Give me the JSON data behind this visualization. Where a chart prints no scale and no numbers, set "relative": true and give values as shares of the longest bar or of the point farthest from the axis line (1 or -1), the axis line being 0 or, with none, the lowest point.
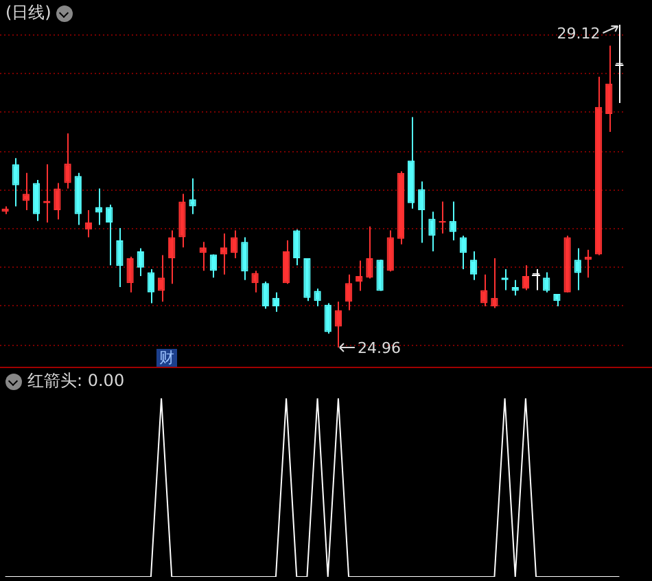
{
  "chart_data": [
    {
      "type": "candlestick",
      "title": "(日线)",
      "categories": [
        null,
        null,
        null,
        null,
        null,
        null,
        null,
        null,
        null,
        null,
        null,
        null,
        null,
        null,
        null,
        null,
        null,
        null,
        null,
        null,
        null,
        null,
        null,
        null,
        null,
        null,
        null,
        null,
        null,
        null,
        null,
        null,
        null,
        null,
        null,
        null,
        null,
        null,
        null,
        null,
        null,
        null,
        null,
        null,
        null,
        null,
        null,
        null,
        null,
        null,
        null,
        null,
        null,
        null,
        null,
        null,
        null,
        null,
        null,
        null
      ],
      "ohlc": [
        [
          26.71,
          26.78,
          26.68,
          26.75
        ],
        [
          27.32,
          27.4,
          26.78,
          27.05
        ],
        [
          26.85,
          27.21,
          26.73,
          26.94
        ],
        [
          27.08,
          27.12,
          26.59,
          26.68
        ],
        [
          26.82,
          27.32,
          26.57,
          26.85
        ],
        [
          26.73,
          27.08,
          26.61,
          27.01
        ],
        [
          27.08,
          27.72,
          27.01,
          27.33
        ],
        [
          27.17,
          27.21,
          26.54,
          26.68
        ],
        [
          26.48,
          26.73,
          26.38,
          26.57
        ],
        [
          26.77,
          27.01,
          26.54,
          26.7
        ],
        [
          26.77,
          26.8,
          26.02,
          26.57
        ],
        [
          26.34,
          26.5,
          25.74,
          26.01
        ],
        [
          25.79,
          26.13,
          25.67,
          26.11
        ],
        [
          26.2,
          26.24,
          25.88,
          25.99
        ],
        [
          25.93,
          25.97,
          25.53,
          25.67
        ],
        [
          25.69,
          26.15,
          25.55,
          25.86
        ],
        [
          26.11,
          26.47,
          25.78,
          26.38
        ],
        [
          26.38,
          26.94,
          26.25,
          26.84
        ],
        [
          26.87,
          27.14,
          26.68,
          26.78
        ],
        [
          26.18,
          26.32,
          25.95,
          26.25
        ],
        [
          26.16,
          26.16,
          25.86,
          25.95
        ],
        [
          26.16,
          26.43,
          25.9,
          26.25
        ],
        [
          26.18,
          26.47,
          26.11,
          26.38
        ],
        [
          26.32,
          26.38,
          25.83,
          25.94
        ],
        [
          25.79,
          25.95,
          25.67,
          25.92
        ],
        [
          25.79,
          25.81,
          25.46,
          25.49
        ],
        [
          25.6,
          25.67,
          25.42,
          25.49
        ],
        [
          25.79,
          26.34,
          25.78,
          26.2
        ],
        [
          26.47,
          26.48,
          26.02,
          26.11
        ],
        [
          26.11,
          26.11,
          25.56,
          25.6
        ],
        [
          25.69,
          25.72,
          25.49,
          25.56
        ],
        [
          25.51,
          25.53,
          25.14,
          25.16
        ],
        [
          25.23,
          25.55,
          24.96,
          25.44
        ],
        [
          25.55,
          25.9,
          25.44,
          25.79
        ],
        [
          25.81,
          26.08,
          25.69,
          25.88
        ],
        [
          25.86,
          26.52,
          25.85,
          26.11
        ],
        [
          26.09,
          26.09,
          25.69,
          25.69
        ],
        [
          25.95,
          26.47,
          25.94,
          26.38
        ],
        [
          26.36,
          27.23,
          26.29,
          27.21
        ],
        [
          27.37,
          27.93,
          26.75,
          26.82
        ],
        [
          27.0,
          27.1,
          26.31,
          26.73
        ],
        [
          26.62,
          26.71,
          26.2,
          26.4
        ],
        [
          26.57,
          26.84,
          26.43,
          26.59
        ],
        [
          26.59,
          26.84,
          26.34,
          26.45
        ],
        [
          26.38,
          26.4,
          25.97,
          26.18
        ],
        [
          26.09,
          26.2,
          25.83,
          25.9
        ],
        [
          25.53,
          25.9,
          25.49,
          25.7
        ],
        [
          25.49,
          26.11,
          25.47,
          25.6
        ],
        [
          25.86,
          25.97,
          25.7,
          25.83
        ],
        [
          25.74,
          25.83,
          25.63,
          25.69
        ],
        [
          25.72,
          26.02,
          25.7,
          25.88
        ],
        [
          25.9,
          25.97,
          25.7,
          25.9
        ],
        [
          25.86,
          25.93,
          25.67,
          25.69
        ],
        [
          25.65,
          25.65,
          25.49,
          25.56
        ],
        [
          25.67,
          26.4,
          25.67,
          26.38
        ],
        [
          26.09,
          26.24,
          25.7,
          25.92
        ],
        [
          26.09,
          26.22,
          25.86,
          26.13
        ],
        [
          26.16,
          28.45,
          26.15,
          28.06
        ],
        [
          27.97,
          28.85,
          27.74,
          28.36
        ],
        [
          28.61,
          29.12,
          28.11,
          28.61
        ]
      ],
      "colors": [
        "#ff3232",
        "#54fcfc",
        "#ff3232",
        "#54fcfc",
        "#ff3232",
        "#ff3232",
        "#ff3232",
        "#54fcfc",
        "#ff3232",
        "#54fcfc",
        "#54fcfc",
        "#54fcfc",
        "#ff3232",
        "#54fcfc",
        "#54fcfc",
        "#ff3232",
        "#ff3232",
        "#ff3232",
        "#54fcfc",
        "#ff3232",
        "#54fcfc",
        "#ff3232",
        "#ff3232",
        "#54fcfc",
        "#ff3232",
        "#54fcfc",
        "#54fcfc",
        "#ff3232",
        "#54fcfc",
        "#54fcfc",
        "#54fcfc",
        "#54fcfc",
        "#ff3232",
        "#ff3232",
        "#ff3232",
        "#ff3232",
        "#54fcfc",
        "#ff3232",
        "#ff3232",
        "#54fcfc",
        "#54fcfc",
        "#54fcfc",
        "#ff3232",
        "#54fcfc",
        "#54fcfc",
        "#54fcfc",
        "#ff3232",
        "#ff3232",
        "#54fcfc",
        "#54fcfc",
        "#ff3232",
        "#ffffff",
        "#54fcfc",
        "#54fcfc",
        "#ff3232",
        "#54fcfc",
        "#ff3232",
        "#ff3232",
        "#ff3232",
        "#ffffff"
      ],
      "yticks": [
        {
          "value": 25,
          "label": null
        },
        {
          "value": 25.5,
          "label": null
        },
        {
          "value": 26,
          "label": null
        },
        {
          "value": 26.5,
          "label": null
        },
        {
          "value": 27,
          "label": null
        },
        {
          "value": 27.5,
          "label": null
        },
        {
          "value": 28,
          "label": null
        },
        {
          "value": 28.5,
          "label": null
        },
        {
          "value": 29,
          "label": null
        }
      ],
      "grid": "y",
      "legend": false,
      "annotations": [
        "29.12",
        "24.96",
        "财"
      ]
    },
    {
      "type": "line",
      "title": "红箭头: 0.00",
      "relative": true,
      "legend": false,
      "categories": [
        null,
        null,
        null,
        null,
        null,
        null,
        null,
        null,
        null,
        null,
        null,
        null,
        null,
        null,
        null,
        null,
        null,
        null,
        null,
        null,
        null,
        null,
        null,
        null,
        null,
        null,
        null,
        null,
        null,
        null,
        null,
        null,
        null,
        null,
        null,
        null,
        null,
        null,
        null,
        null,
        null,
        null,
        null,
        null,
        null,
        null,
        null,
        null,
        null,
        null,
        null,
        null,
        null,
        null,
        null,
        null,
        null,
        null,
        null,
        null
      ],
      "series": [
        {
          "color": "#ffffff",
          "values": [
            0,
            0,
            0,
            0,
            0,
            0,
            0,
            0,
            0,
            0,
            0,
            0,
            0,
            0,
            0,
            1,
            0,
            0,
            0,
            0,
            0,
            0,
            0,
            0,
            0,
            0,
            0,
            1,
            0,
            0,
            1,
            0,
            1,
            0,
            0,
            0,
            0,
            0,
            0,
            0,
            0,
            0,
            0,
            0,
            0,
            0,
            0,
            0,
            1,
            0,
            1,
            0,
            0,
            0,
            0,
            0,
            0,
            0,
            0,
            0
          ]
        }
      ]
    }
  ]
}
